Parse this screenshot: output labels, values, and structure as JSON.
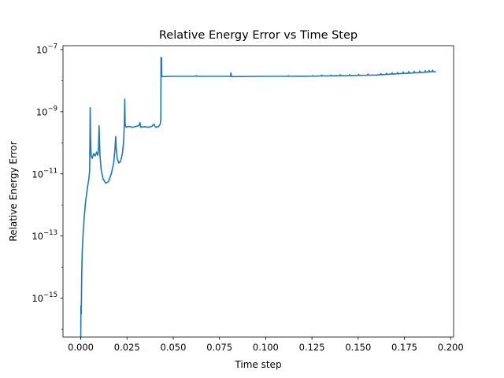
{
  "chart_data": {
    "type": "line",
    "title": "Relative Energy Error vs Time Step",
    "xlabel": "Time step",
    "ylabel": "Relative Energy Error",
    "yscale": "log",
    "xlim": [
      -0.0096,
      0.2016
    ],
    "ylim_log10": [
      -16.25,
      -6.875
    ],
    "x_ticks": [
      {
        "value": 0.0,
        "label": "0.000"
      },
      {
        "value": 0.025,
        "label": "0.025"
      },
      {
        "value": 0.05,
        "label": "0.050"
      },
      {
        "value": 0.075,
        "label": "0.075"
      },
      {
        "value": 0.1,
        "label": "0.100"
      },
      {
        "value": 0.125,
        "label": "0.125"
      },
      {
        "value": 0.15,
        "label": "0.150"
      },
      {
        "value": 0.175,
        "label": "0.175"
      },
      {
        "value": 0.2,
        "label": "0.200"
      }
    ],
    "y_ticks": [
      {
        "exp": -15,
        "base": "10",
        "sup": "−15"
      },
      {
        "exp": -13,
        "base": "10",
        "sup": "−13"
      },
      {
        "exp": -11,
        "base": "10",
        "sup": "−11"
      },
      {
        "exp": -9,
        "base": "10",
        "sup": "−9"
      },
      {
        "exp": -7,
        "base": "10",
        "sup": "−7"
      }
    ],
    "series": [
      {
        "name": "Relative Energy Error",
        "color": "#1f77b4",
        "points": [
          [
            0.0,
            -16.3
          ],
          [
            0.0001,
            -15.25
          ],
          [
            0.0003,
            -15.5
          ],
          [
            0.0005,
            -14.3
          ],
          [
            0.0008,
            -13.5
          ],
          [
            0.0012,
            -13.0
          ],
          [
            0.0018,
            -12.45
          ],
          [
            0.0026,
            -11.9
          ],
          [
            0.0036,
            -11.45
          ],
          [
            0.0044,
            -11.15
          ],
          [
            0.0048,
            -10.9
          ],
          [
            0.005,
            -9.7
          ],
          [
            0.0051,
            -8.87
          ],
          [
            0.0053,
            -9.8
          ],
          [
            0.0056,
            -10.4
          ],
          [
            0.0062,
            -10.5
          ],
          [
            0.007,
            -10.35
          ],
          [
            0.0078,
            -10.42
          ],
          [
            0.0086,
            -10.3
          ],
          [
            0.0092,
            -10.4
          ],
          [
            0.0096,
            -10.2
          ],
          [
            0.0099,
            -9.45
          ],
          [
            0.0101,
            -9.9
          ],
          [
            0.0104,
            -10.4
          ],
          [
            0.011,
            -10.85
          ],
          [
            0.012,
            -11.15
          ],
          [
            0.0135,
            -11.3
          ],
          [
            0.015,
            -11.25
          ],
          [
            0.0165,
            -11.0
          ],
          [
            0.0178,
            -10.65
          ],
          [
            0.0185,
            -10.2
          ],
          [
            0.0189,
            -9.8
          ],
          [
            0.0192,
            -10.2
          ],
          [
            0.0197,
            -10.5
          ],
          [
            0.0205,
            -10.65
          ],
          [
            0.0215,
            -10.6
          ],
          [
            0.0225,
            -10.35
          ],
          [
            0.0232,
            -9.95
          ],
          [
            0.0236,
            -9.3
          ],
          [
            0.0238,
            -8.6
          ],
          [
            0.024,
            -9.4
          ],
          [
            0.0245,
            -9.5
          ],
          [
            0.026,
            -9.47
          ],
          [
            0.028,
            -9.5
          ],
          [
            0.03,
            -9.47
          ],
          [
            0.0315,
            -9.45
          ],
          [
            0.032,
            -9.35
          ],
          [
            0.0325,
            -9.5
          ],
          [
            0.0345,
            -9.48
          ],
          [
            0.0365,
            -9.5
          ],
          [
            0.0385,
            -9.47
          ],
          [
            0.0395,
            -9.4
          ],
          [
            0.0405,
            -9.5
          ],
          [
            0.042,
            -9.48
          ],
          [
            0.043,
            -9.4
          ],
          [
            0.0433,
            -9.2
          ],
          [
            0.0434,
            -7.25
          ],
          [
            0.0437,
            -7.28
          ],
          [
            0.0438,
            -7.85
          ],
          [
            0.044,
            -7.87
          ],
          [
            0.05,
            -7.86
          ],
          [
            0.062,
            -7.86
          ],
          [
            0.0625,
            -7.84
          ],
          [
            0.063,
            -7.86
          ],
          [
            0.081,
            -7.86
          ],
          [
            0.0812,
            -7.75
          ],
          [
            0.0815,
            -7.87
          ],
          [
            0.1,
            -7.86
          ],
          [
            0.112,
            -7.86
          ],
          [
            0.1123,
            -7.84
          ],
          [
            0.1126,
            -7.86
          ],
          [
            0.125,
            -7.855
          ],
          [
            0.1253,
            -7.84
          ],
          [
            0.1256,
            -7.855
          ],
          [
            0.13,
            -7.85
          ],
          [
            0.1303,
            -7.82
          ],
          [
            0.1306,
            -7.85
          ],
          [
            0.135,
            -7.845
          ],
          [
            0.1353,
            -7.82
          ],
          [
            0.1356,
            -7.845
          ],
          [
            0.14,
            -7.84
          ],
          [
            0.1403,
            -7.81
          ],
          [
            0.1406,
            -7.84
          ],
          [
            0.145,
            -7.835
          ],
          [
            0.1453,
            -7.81
          ],
          [
            0.1456,
            -7.835
          ],
          [
            0.15,
            -7.83
          ],
          [
            0.1503,
            -7.8
          ],
          [
            0.1506,
            -7.83
          ],
          [
            0.155,
            -7.825
          ],
          [
            0.1553,
            -7.79
          ],
          [
            0.1556,
            -7.825
          ],
          [
            0.16,
            -7.82
          ],
          [
            0.162,
            -7.81
          ],
          [
            0.1623,
            -7.77
          ],
          [
            0.1626,
            -7.81
          ],
          [
            0.165,
            -7.8
          ],
          [
            0.1653,
            -7.76
          ],
          [
            0.1656,
            -7.8
          ],
          [
            0.168,
            -7.79
          ],
          [
            0.1683,
            -7.75
          ],
          [
            0.1686,
            -7.79
          ],
          [
            0.171,
            -7.78
          ],
          [
            0.1713,
            -7.74
          ],
          [
            0.1716,
            -7.78
          ],
          [
            0.174,
            -7.77
          ],
          [
            0.1743,
            -7.72
          ],
          [
            0.1746,
            -7.77
          ],
          [
            0.177,
            -7.76
          ],
          [
            0.1773,
            -7.71
          ],
          [
            0.1776,
            -7.76
          ],
          [
            0.18,
            -7.75
          ],
          [
            0.1803,
            -7.7
          ],
          [
            0.1806,
            -7.75
          ],
          [
            0.183,
            -7.74
          ],
          [
            0.1833,
            -7.69
          ],
          [
            0.1836,
            -7.74
          ],
          [
            0.186,
            -7.73
          ],
          [
            0.1863,
            -7.68
          ],
          [
            0.1866,
            -7.73
          ],
          [
            0.188,
            -7.72
          ],
          [
            0.1883,
            -7.67
          ],
          [
            0.1886,
            -7.72
          ],
          [
            0.19,
            -7.71
          ],
          [
            0.1903,
            -7.66
          ],
          [
            0.1906,
            -7.71
          ],
          [
            0.192,
            -7.72
          ]
        ]
      }
    ]
  }
}
